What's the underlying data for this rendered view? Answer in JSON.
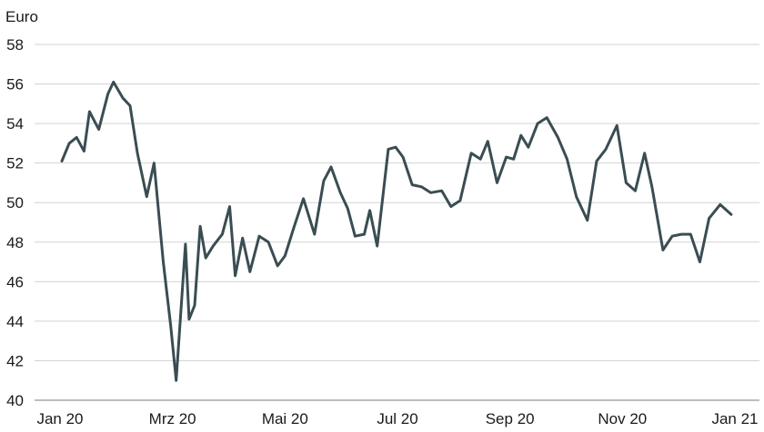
{
  "chart_data": {
    "type": "line",
    "unit_label": "Euro",
    "grid": true,
    "line_color": "#3a4d52",
    "y_ticks": [
      40,
      42,
      44,
      46,
      48,
      50,
      52,
      54,
      56,
      58
    ],
    "x_ticks": [
      "Jan 20",
      "Mrz 20",
      "Mai 20",
      "Jul 20",
      "Sep 20",
      "Nov 20",
      "Jan 21"
    ],
    "ylim": [
      40,
      58
    ],
    "series": [
      {
        "x": [
          "2020-01-02",
          "2020-01-06",
          "2020-01-10",
          "2020-01-14",
          "2020-01-17",
          "2020-01-22",
          "2020-01-27",
          "2020-01-30",
          "2020-02-04",
          "2020-02-08",
          "2020-02-12",
          "2020-02-17",
          "2020-02-21",
          "2020-02-26",
          "2020-03-01",
          "2020-03-04",
          "2020-03-09",
          "2020-03-11",
          "2020-03-14",
          "2020-03-17",
          "2020-03-20",
          "2020-03-24",
          "2020-03-29",
          "2020-04-02",
          "2020-04-05",
          "2020-04-09",
          "2020-04-13",
          "2020-04-18",
          "2020-04-23",
          "2020-04-28",
          "2020-05-02",
          "2020-05-07",
          "2020-05-12",
          "2020-05-18",
          "2020-05-23",
          "2020-05-27",
          "2020-06-01",
          "2020-06-05",
          "2020-06-09",
          "2020-06-14",
          "2020-06-17",
          "2020-06-21",
          "2020-06-27",
          "2020-07-01",
          "2020-07-05",
          "2020-07-10",
          "2020-07-15",
          "2020-07-20",
          "2020-07-26",
          "2020-07-31",
          "2020-08-05",
          "2020-08-11",
          "2020-08-16",
          "2020-08-20",
          "2020-08-25",
          "2020-08-30",
          "2020-09-03",
          "2020-09-07",
          "2020-09-11",
          "2020-09-16",
          "2020-09-21",
          "2020-09-27",
          "2020-10-02",
          "2020-10-07",
          "2020-10-13",
          "2020-10-18",
          "2020-10-23",
          "2020-10-29",
          "2020-11-03",
          "2020-11-08",
          "2020-11-13",
          "2020-11-17",
          "2020-11-23",
          "2020-11-28",
          "2020-12-03",
          "2020-12-08",
          "2020-12-13",
          "2020-12-18",
          "2020-12-24",
          "2020-12-30"
        ],
        "values": [
          52.1,
          53.0,
          53.3,
          52.6,
          54.6,
          53.7,
          55.5,
          56.1,
          55.3,
          54.9,
          52.5,
          50.3,
          52.0,
          47.0,
          43.8,
          41.0,
          47.9,
          44.1,
          44.8,
          48.8,
          47.2,
          47.8,
          48.4,
          49.8,
          46.3,
          48.2,
          46.5,
          48.3,
          48.0,
          46.8,
          47.3,
          48.8,
          50.2,
          48.4,
          51.1,
          51.8,
          50.5,
          49.7,
          48.3,
          48.4,
          49.6,
          47.8,
          52.7,
          52.8,
          52.3,
          50.9,
          50.8,
          50.5,
          50.6,
          49.8,
          50.1,
          52.5,
          52.2,
          53.1,
          51.0,
          52.3,
          52.2,
          53.4,
          52.8,
          54.0,
          54.3,
          53.3,
          52.2,
          50.3,
          49.1,
          52.1,
          52.7,
          53.9,
          51.0,
          50.6,
          52.5,
          50.8,
          47.6,
          48.3,
          48.4,
          48.4,
          47.0,
          49.2,
          49.9,
          49.4
        ]
      }
    ]
  }
}
